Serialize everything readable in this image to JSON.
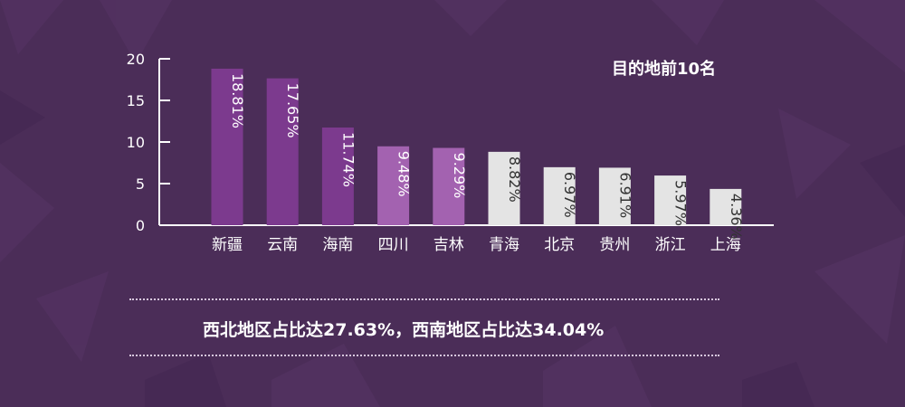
{
  "chart_data": {
    "type": "bar",
    "title": "目的地前10名",
    "categories": [
      "新疆",
      "云南",
      "海南",
      "四川",
      "吉林",
      "青海",
      "北京",
      "贵州",
      "浙江",
      "上海"
    ],
    "values": [
      18.81,
      17.65,
      11.74,
      9.48,
      9.29,
      8.82,
      6.97,
      6.91,
      5.97,
      4.36
    ],
    "data_labels": [
      "18.81%",
      "17.65%",
      "11.74%",
      "9.48%",
      "9.29%",
      "8.82%",
      "6.97%",
      "6.91%",
      "5.97%",
      "4.36%"
    ],
    "ylim": [
      0,
      20
    ],
    "yticks": [
      0,
      5,
      10,
      15,
      20
    ],
    "xlabel": "",
    "ylabel": "",
    "grid": false,
    "bar_colors": [
      "#7c3a8e",
      "#7c3a8e",
      "#7c3a8e",
      "#a362b0",
      "#a362b0",
      "#e4e4e4",
      "#e4e4e4",
      "#e4e4e4",
      "#e4e4e4",
      "#e4e4e4"
    ],
    "label_colors": [
      "#ffffff",
      "#ffffff",
      "#ffffff",
      "#ffffff",
      "#ffffff",
      "#333333",
      "#333333",
      "#333333",
      "#333333",
      "#333333"
    ]
  },
  "summary": "西北地区占比达27.63%，西南地区占比达34.04%",
  "colors": {
    "background": "#4b2d58",
    "axis": "#ffffff"
  }
}
